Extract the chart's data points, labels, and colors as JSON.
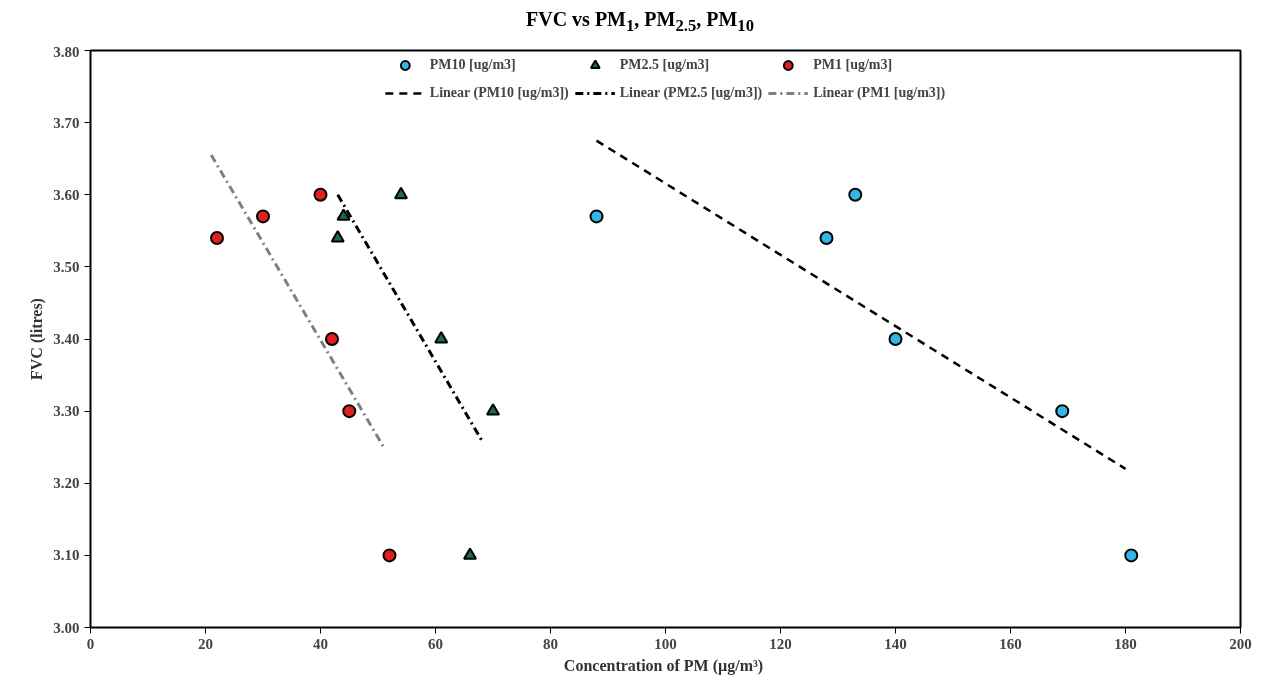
{
  "chart_data": {
    "type": "scatter",
    "title": "FVC vs PM$_{1}$, PM$_{2.5}$, PM$_{10}$",
    "xlabel": "Concentration  of PM (µg/m³)",
    "ylabel": "FVC (litres)",
    "xlim": [
      0,
      200
    ],
    "xticks": [
      0,
      20,
      40,
      60,
      80,
      100,
      120,
      140,
      160,
      180,
      200
    ],
    "ylim": [
      3.0,
      3.8
    ],
    "yticks": [
      {
        "value": 3.0,
        "label": "3.00"
      },
      {
        "value": 3.1,
        "label": "3.10"
      },
      {
        "value": 3.2,
        "label": "3.20"
      },
      {
        "value": 3.3,
        "label": "3.30"
      },
      {
        "value": 3.4,
        "label": "3.40"
      },
      {
        "value": 3.5,
        "label": "3.50"
      },
      {
        "value": 3.6,
        "label": "3.60"
      },
      {
        "value": 3.7,
        "label": "3.70"
      },
      {
        "value": 3.8,
        "label": "3.80"
      }
    ],
    "grid": false,
    "legend": "top",
    "series": [
      {
        "name": "PM10 [ug/m3]",
        "marker": "circle",
        "color": "#33b5e5",
        "x": [
          88,
          128,
          133,
          140,
          169,
          181
        ],
        "values": [
          3.57,
          3.54,
          3.6,
          3.4,
          3.3,
          3.1
        ]
      },
      {
        "name": "PM2.5 [ug/m3]",
        "marker": "triangle",
        "color": "#1b6b4f",
        "x": [
          43,
          44,
          54,
          61,
          66,
          70
        ],
        "values": [
          3.54,
          3.57,
          3.6,
          3.4,
          3.1,
          3.3
        ]
      },
      {
        "name": "PM1 [ug/m3]",
        "marker": "circle",
        "color": "#e02020",
        "x": [
          22,
          30,
          40,
          42,
          45,
          52
        ],
        "values": [
          3.54,
          3.57,
          3.6,
          3.4,
          3.3,
          3.1
        ]
      },
      {
        "name": "Linear (PM10 [ug/m3])",
        "type": "line",
        "line_style": "dashed",
        "color": "#000000",
        "x": [
          88,
          180
        ],
        "values": [
          3.675,
          3.22
        ]
      },
      {
        "name": "Linear (PM2.5 [ug/m3])",
        "type": "line",
        "line_style": "dashdot",
        "color": "#000000",
        "x": [
          43,
          68
        ],
        "values": [
          3.6,
          3.26
        ]
      },
      {
        "name": "Linear (PM1 [ug/m3])",
        "type": "line",
        "line_style": "dashdot",
        "color": "#808080",
        "x": [
          21,
          51
        ],
        "values": [
          3.655,
          3.25
        ]
      }
    ]
  }
}
